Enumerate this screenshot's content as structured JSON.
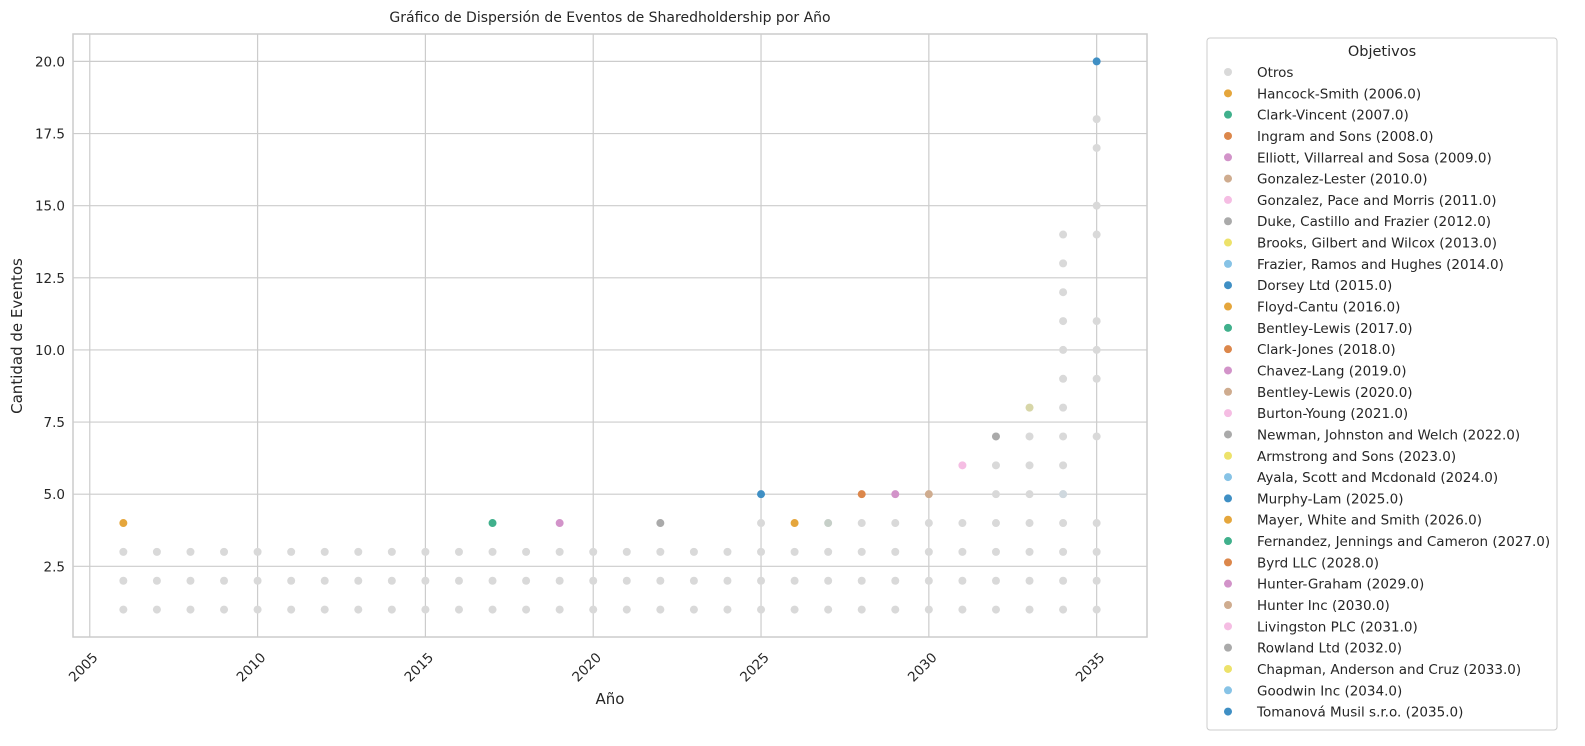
{
  "chart_data": {
    "type": "scatter",
    "title": "Gráfico de Dispersión de Eventos de Sharedholdership por Año",
    "xlabel": "Año",
    "ylabel": "Cantidad de Eventos",
    "xlim": [
      2004.5,
      2036.5
    ],
    "ylim": [
      0.05,
      20.95
    ],
    "xticks": [
      2005,
      2010,
      2015,
      2020,
      2025,
      2030,
      2035
    ],
    "yticks": [
      2.5,
      5.0,
      7.5,
      10.0,
      12.5,
      15.0,
      17.5,
      20.0
    ],
    "xtick_labels": [
      "2005",
      "2010",
      "2015",
      "2020",
      "2025",
      "2030",
      "2035"
    ],
    "ytick_labels": [
      "2.5",
      "5.0",
      "7.5",
      "10.0",
      "12.5",
      "15.0",
      "17.5",
      "20.0"
    ],
    "grid": true,
    "legend_position": "outside-right",
    "legend_title": "Objetivos",
    "colors": {
      "gray": "#d9d9d9",
      "orange": "#e5a63c",
      "teal": "#40b08c",
      "rust": "#dc874b",
      "pink": "#d293c9",
      "tan": "#cfac8f",
      "lightpink": "#f5bde3",
      "darkgray": "#aaaaaa",
      "yellow": "#ede26a",
      "skyblue": "#87c3e6",
      "blue": "#3f8fc4",
      "olive": "#d7d6a8"
    },
    "series": [
      {
        "name": "Otros",
        "color": "#d9d9d9",
        "points": [
          [
            2006,
            1
          ],
          [
            2006,
            2
          ],
          [
            2006,
            3
          ],
          [
            2007,
            1
          ],
          [
            2007,
            2
          ],
          [
            2007,
            3
          ],
          [
            2008,
            1
          ],
          [
            2008,
            2
          ],
          [
            2008,
            3
          ],
          [
            2009,
            1
          ],
          [
            2009,
            2
          ],
          [
            2009,
            3
          ],
          [
            2010,
            1
          ],
          [
            2010,
            2
          ],
          [
            2010,
            3
          ],
          [
            2011,
            1
          ],
          [
            2011,
            2
          ],
          [
            2011,
            3
          ],
          [
            2012,
            1
          ],
          [
            2012,
            2
          ],
          [
            2012,
            3
          ],
          [
            2013,
            1
          ],
          [
            2013,
            2
          ],
          [
            2013,
            3
          ],
          [
            2014,
            1
          ],
          [
            2014,
            2
          ],
          [
            2014,
            3
          ],
          [
            2015,
            1
          ],
          [
            2015,
            2
          ],
          [
            2015,
            3
          ],
          [
            2016,
            1
          ],
          [
            2016,
            2
          ],
          [
            2016,
            3
          ],
          [
            2017,
            1
          ],
          [
            2017,
            2
          ],
          [
            2017,
            3
          ],
          [
            2018,
            1
          ],
          [
            2018,
            2
          ],
          [
            2018,
            3
          ],
          [
            2019,
            1
          ],
          [
            2019,
            2
          ],
          [
            2019,
            3
          ],
          [
            2020,
            1
          ],
          [
            2020,
            2
          ],
          [
            2020,
            3
          ],
          [
            2021,
            1
          ],
          [
            2021,
            2
          ],
          [
            2021,
            3
          ],
          [
            2022,
            1
          ],
          [
            2022,
            2
          ],
          [
            2022,
            3
          ],
          [
            2023,
            1
          ],
          [
            2023,
            2
          ],
          [
            2023,
            3
          ],
          [
            2024,
            1
          ],
          [
            2024,
            2
          ],
          [
            2024,
            3
          ],
          [
            2025,
            1
          ],
          [
            2025,
            2
          ],
          [
            2025,
            3
          ],
          [
            2025,
            4
          ],
          [
            2026,
            1
          ],
          [
            2026,
            2
          ],
          [
            2026,
            3
          ],
          [
            2027,
            1
          ],
          [
            2027,
            2
          ],
          [
            2027,
            3
          ],
          [
            2028,
            1
          ],
          [
            2028,
            2
          ],
          [
            2028,
            3
          ],
          [
            2028,
            4
          ],
          [
            2029,
            1
          ],
          [
            2029,
            2
          ],
          [
            2029,
            3
          ],
          [
            2029,
            4
          ],
          [
            2030,
            1
          ],
          [
            2030,
            2
          ],
          [
            2030,
            3
          ],
          [
            2030,
            4
          ],
          [
            2031,
            1
          ],
          [
            2031,
            2
          ],
          [
            2031,
            3
          ],
          [
            2031,
            4
          ],
          [
            2032,
            1
          ],
          [
            2032,
            2
          ],
          [
            2032,
            3
          ],
          [
            2032,
            4
          ],
          [
            2032,
            5
          ],
          [
            2032,
            6
          ],
          [
            2033,
            1
          ],
          [
            2033,
            2
          ],
          [
            2033,
            3
          ],
          [
            2033,
            4
          ],
          [
            2033,
            5
          ],
          [
            2033,
            6
          ],
          [
            2033,
            7
          ],
          [
            2034,
            1
          ],
          [
            2034,
            2
          ],
          [
            2034,
            3
          ],
          [
            2034,
            4
          ],
          [
            2034,
            5
          ],
          [
            2034,
            6
          ],
          [
            2034,
            7
          ],
          [
            2034,
            8
          ],
          [
            2034,
            9
          ],
          [
            2034,
            10
          ],
          [
            2034,
            11
          ],
          [
            2034,
            12
          ],
          [
            2034,
            13
          ],
          [
            2034,
            14
          ],
          [
            2035,
            1
          ],
          [
            2035,
            2
          ],
          [
            2035,
            3
          ],
          [
            2035,
            4
          ],
          [
            2035,
            7
          ],
          [
            2035,
            9
          ],
          [
            2035,
            10
          ],
          [
            2035,
            11
          ],
          [
            2035,
            14
          ],
          [
            2035,
            15
          ],
          [
            2035,
            17
          ],
          [
            2035,
            18
          ]
        ]
      },
      {
        "name": "Hancock-Smith (2006.0)",
        "color": "#e5a63c",
        "points": [
          [
            2006,
            4
          ]
        ]
      },
      {
        "name": "Clark-Vincent (2007.0)",
        "color": "#40b08c",
        "points": []
      },
      {
        "name": "Ingram and Sons (2008.0)",
        "color": "#dc874b",
        "points": []
      },
      {
        "name": "Elliott, Villarreal and Sosa (2009.0)",
        "color": "#d293c9",
        "points": []
      },
      {
        "name": "Gonzalez-Lester (2010.0)",
        "color": "#cfac8f",
        "points": []
      },
      {
        "name": "Gonzalez, Pace and Morris (2011.0)",
        "color": "#f5bde3",
        "points": []
      },
      {
        "name": "Duke, Castillo and Frazier (2012.0)",
        "color": "#aaaaaa",
        "points": []
      },
      {
        "name": "Brooks, Gilbert and Wilcox (2013.0)",
        "color": "#ede26a",
        "points": []
      },
      {
        "name": "Frazier, Ramos and Hughes (2014.0)",
        "color": "#87c3e6",
        "points": []
      },
      {
        "name": "Dorsey Ltd (2015.0)",
        "color": "#3f8fc4",
        "points": []
      },
      {
        "name": "Floyd-Cantu (2016.0)",
        "color": "#e5a63c",
        "points": []
      },
      {
        "name": "Bentley-Lewis (2017.0)",
        "color": "#40b08c",
        "points": [
          [
            2017,
            4
          ]
        ]
      },
      {
        "name": "Clark-Jones (2018.0)",
        "color": "#dc874b",
        "points": []
      },
      {
        "name": "Chavez-Lang (2019.0)",
        "color": "#d293c9",
        "points": [
          [
            2019,
            4
          ]
        ]
      },
      {
        "name": "Bentley-Lewis (2020.0)",
        "color": "#cfac8f",
        "points": []
      },
      {
        "name": "Burton-Young (2021.0)",
        "color": "#f5bde3",
        "points": []
      },
      {
        "name": "Newman, Johnston and Welch (2022.0)",
        "color": "#aaaaaa",
        "points": [
          [
            2022,
            4
          ]
        ]
      },
      {
        "name": "Armstrong and Sons (2023.0)",
        "color": "#ede26a",
        "points": []
      },
      {
        "name": "Ayala, Scott and Mcdonald (2024.0)",
        "color": "#87c3e6",
        "points": []
      },
      {
        "name": "Murphy-Lam (2025.0)",
        "color": "#3f8fc4",
        "points": [
          [
            2025,
            5
          ]
        ]
      },
      {
        "name": "Mayer, White and Smith (2026.0)",
        "color": "#e5a63c",
        "points": [
          [
            2026,
            4
          ]
        ]
      },
      {
        "name": "Fernandez, Jennings and Cameron (2027.0)",
        "color": "#40b08c",
        "points": []
      },
      {
        "name": "Byrd LLC (2028.0)",
        "color": "#dc874b",
        "points": [
          [
            2028,
            5
          ]
        ]
      },
      {
        "name": "Hunter-Graham (2029.0)",
        "color": "#d293c9",
        "points": [
          [
            2029,
            5
          ]
        ]
      },
      {
        "name": "Hunter Inc (2030.0)",
        "color": "#cfac8f",
        "points": [
          [
            2030,
            5
          ]
        ]
      },
      {
        "name": "Livingston PLC (2031.0)",
        "color": "#f5bde3",
        "points": [
          [
            2031,
            6
          ]
        ]
      },
      {
        "name": "Rowland Ltd (2032.0)",
        "color": "#aaaaaa",
        "points": [
          [
            2032,
            7
          ]
        ]
      },
      {
        "name": "Chapman, Anderson and Cruz (2033.0)",
        "color": "#ede26a",
        "points": []
      },
      {
        "name": "Goodwin Inc (2034.0)",
        "color": "#87c3e6",
        "points": []
      },
      {
        "name": "Tomanová Musil s.r.o. (2035.0)",
        "color": "#3f8fc4",
        "points": [
          [
            2035,
            20
          ]
        ]
      }
    ],
    "extra_points": [
      {
        "x": 2027,
        "y": 4,
        "color": "#c6cfc8"
      },
      {
        "x": 2033,
        "y": 8,
        "color": "#d7d6a8"
      },
      {
        "x": 2034,
        "y": 5,
        "color": "#cfd8de"
      }
    ]
  }
}
